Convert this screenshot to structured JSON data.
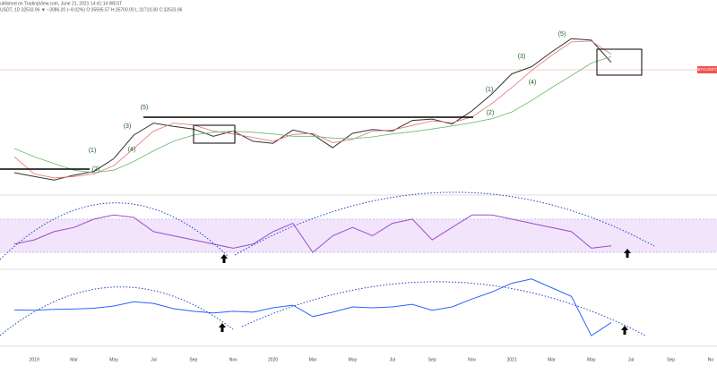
{
  "header": {
    "published": "ublished on TradingView.com, June 21, 2021 14:41:14 WEST",
    "symbol": "USDT, 1D  32533.96 ▼ −3086.20 (−8.02%)  O:35595.57  H:35700.00  L:31710.00  C:32533.96"
  },
  "chart_data": [
    {
      "type": "line",
      "log_scale": true,
      "ylim": [
        3000,
        80000
      ],
      "categories": [
        null,
        "2019",
        null,
        "Mar",
        null,
        "May",
        null,
        "Jul",
        null,
        "Sep",
        null,
        "Nov",
        null,
        "2020",
        null,
        "Mar",
        null,
        "May",
        null,
        "Jul",
        null,
        "Sep",
        null,
        "Nov",
        null,
        "2021",
        null,
        "Mar",
        null,
        "May",
        null,
        "Jul",
        null,
        "Sep",
        null,
        "No"
      ],
      "series": [
        {
          "color": "#333333",
          "values": [
            4000,
            3700,
            3450,
            3800,
            4100,
            5300,
            8500,
            10800,
            10100,
            9600,
            8300,
            9200,
            7500,
            7200,
            9400,
            8600,
            6600,
            8800,
            9500,
            9200,
            11400,
            11700,
            10600,
            13800,
            19400,
            29000,
            33500,
            45000,
            58800,
            57000,
            36500,
            null,
            null,
            null,
            null,
            null
          ]
        },
        {
          "color": "#e57373",
          "values": [
            5500,
            3900,
            3600,
            3700,
            3900,
            4600,
            6500,
            9200,
            10800,
            10400,
            9200,
            8700,
            8100,
            7500,
            8600,
            8800,
            7300,
            7800,
            9200,
            9400,
            10300,
            11300,
            10900,
            12200,
            16000,
            22000,
            31000,
            42000,
            55000,
            56000,
            43000,
            null,
            null,
            null,
            null,
            null
          ]
        },
        {
          "color": "#66bb6a",
          "values": [
            6500,
            5500,
            4800,
            4200,
            4000,
            4200,
            5000,
            6200,
            7500,
            8500,
            9000,
            9200,
            9000,
            8700,
            8300,
            8300,
            8000,
            7900,
            8200,
            8700,
            9100,
            9600,
            10200,
            10900,
            11800,
            13500,
            17000,
            22000,
            28000,
            36000,
            41000,
            null,
            null,
            null,
            null,
            null
          ]
        }
      ],
      "annotations": [
        "(1)",
        "(2)",
        "(3)",
        "(4)",
        "(5)",
        "(1)",
        "(2)",
        "(3)",
        "(4)",
        "(5)"
      ],
      "price_tag": "BTCUSDT"
    },
    {
      "type": "line",
      "ylim": [
        0,
        100
      ],
      "band": [
        30,
        70
      ],
      "series": [
        {
          "color": "#9c4dcc",
          "values": [
            40,
            45,
            55,
            60,
            70,
            75,
            72,
            55,
            50,
            45,
            40,
            35,
            40,
            55,
            65,
            30,
            50,
            60,
            50,
            65,
            70,
            45,
            60,
            75,
            75,
            70,
            65,
            60,
            55,
            35,
            38,
            null,
            null,
            null,
            null,
            null
          ]
        }
      ]
    },
    {
      "type": "line",
      "ylim": [
        -4000,
        4500
      ],
      "series": [
        {
          "color": "#2962ff",
          "values": [
            -50,
            -80,
            20,
            60,
            150,
            400,
            900,
            700,
            100,
            -200,
            -400,
            -200,
            -300,
            200,
            500,
            -800,
            -300,
            300,
            200,
            300,
            600,
            -100,
            300,
            1200,
            2000,
            3000,
            3500,
            2500,
            1500,
            -3000,
            -1500,
            null,
            null,
            null,
            null,
            null
          ]
        }
      ]
    }
  ]
}
